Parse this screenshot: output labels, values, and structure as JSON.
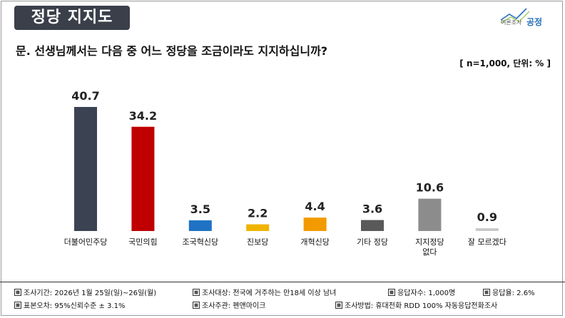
{
  "header": {
    "badge_title": "정당 지지도",
    "logo_small": "여론조사",
    "logo_big": "공정"
  },
  "question": "문. 선생님께서는 다음 중 어느 정당을 조금이라도 지지하십니까?",
  "unit_note": "[ n=1,000, 단위: % ]",
  "chart_data": {
    "type": "bar",
    "title": "",
    "xlabel": "",
    "ylabel": "",
    "ylim": [
      0,
      45
    ],
    "grid": false,
    "categories": [
      [
        "더불어민주당"
      ],
      [
        "국민의힘"
      ],
      [
        "조국혁신당"
      ],
      [
        "진보당"
      ],
      [
        "개혁신당"
      ],
      [
        "기타 정당"
      ],
      [
        "지지정당",
        "없다"
      ],
      [
        "잘 모르겠다"
      ]
    ],
    "values": [
      40.7,
      34.2,
      3.5,
      2.2,
      4.4,
      3.6,
      10.6,
      0.9
    ],
    "value_labels": [
      "40.7",
      "34.2",
      "3.5",
      "2.2",
      "4.4",
      "3.6",
      "10.6",
      "0.9"
    ],
    "colors": [
      "#3b4252",
      "#c00000",
      "#1f72c4",
      "#f0b400",
      "#f39a00",
      "#595959",
      "#8c8c8c",
      "#c8c8c8"
    ]
  },
  "footer": {
    "survey_period": "조사기간: 2026년 1월 25일(일)~26일(월)",
    "target": "조사대상: 전국에 거주하는 만18세 이상 남녀",
    "respondents": "응답자수: 1,000명",
    "response_rate": "응답율: 2.6%",
    "margin_error": "표본오차: 95%신뢰수준 ± 3.1%",
    "organizer": "조사주관: 펜앤마이크",
    "method": "조사방법: 휴대전화 RDD 100% 자동응답전화조사"
  }
}
